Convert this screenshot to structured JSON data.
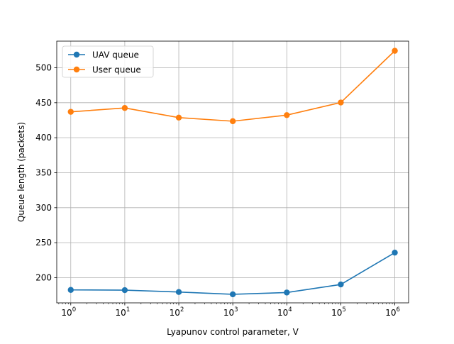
{
  "chart_data": {
    "type": "line",
    "title": "",
    "xlabel": "Lyapunov control parameter, V",
    "ylabel": "Queue length (packets)",
    "x_scale": "log",
    "x_base": 10,
    "x_exponents": [
      0,
      1,
      2,
      3,
      4,
      5,
      6
    ],
    "x": [
      1,
      10,
      100,
      1000,
      10000,
      100000,
      1000000
    ],
    "xlim": [
      0.55,
      1800000
    ],
    "ylim": [
      164,
      538
    ],
    "y_ticks": [
      200,
      250,
      300,
      350,
      400,
      450,
      500
    ],
    "grid": true,
    "legend_position": "top-left",
    "series": [
      {
        "name": "UAV queue",
        "color": "#1f77b4",
        "marker": "circle",
        "values": [
          182.5,
          182.2,
          179.5,
          176.2,
          178.8,
          190.3,
          235.8
        ]
      },
      {
        "name": "User queue",
        "color": "#ff7f0e",
        "marker": "circle",
        "values": [
          437.0,
          442.5,
          428.7,
          423.6,
          432.3,
          450.3,
          524.2
        ]
      }
    ]
  }
}
